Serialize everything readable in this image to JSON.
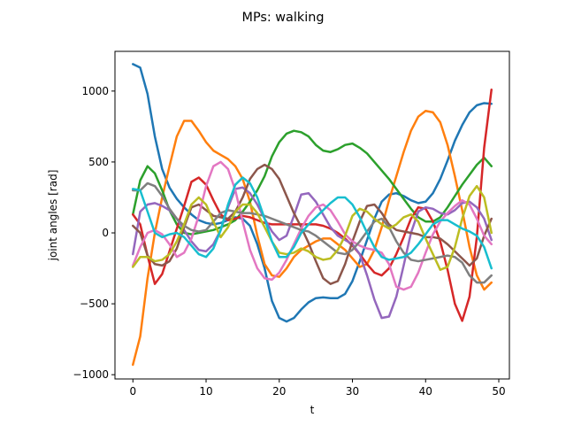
{
  "chart_data": {
    "type": "line",
    "title": "MPs: walking",
    "xlabel": "t",
    "ylabel": "joint angles [rad]",
    "xlim": [
      -2.45,
      51.45
    ],
    "ylim": [
      -1030,
      1280
    ],
    "xticks": [
      0,
      10,
      20,
      30,
      40,
      50
    ],
    "yticks": [
      -1000,
      -500,
      0,
      500,
      1000
    ],
    "grid": false,
    "x": [
      0,
      1,
      2,
      3,
      4,
      5,
      6,
      7,
      8,
      9,
      10,
      11,
      12,
      13,
      14,
      15,
      16,
      17,
      18,
      19,
      20,
      21,
      22,
      23,
      24,
      25,
      26,
      27,
      28,
      29,
      30,
      31,
      32,
      33,
      34,
      35,
      36,
      37,
      38,
      39,
      40,
      41,
      42,
      43,
      44,
      45,
      46,
      47,
      48,
      49
    ],
    "series": [
      {
        "color": "#1f77b4",
        "values": [
          1190,
          1165,
          980,
          680,
          450,
          320,
          240,
          180,
          130,
          90,
          70,
          60,
          70,
          90,
          110,
          100,
          50,
          -80,
          -250,
          -480,
          -600,
          -625,
          -600,
          -540,
          -490,
          -460,
          -455,
          -460,
          -460,
          -430,
          -340,
          -200,
          -50,
          100,
          220,
          270,
          280,
          260,
          230,
          210,
          220,
          280,
          380,
          510,
          650,
          760,
          850,
          900,
          915,
          910
        ]
      },
      {
        "color": "#ff7f0e",
        "values": [
          -930,
          -730,
          -320,
          0,
          250,
          470,
          680,
          790,
          790,
          720,
          640,
          580,
          550,
          520,
          470,
          380,
          220,
          -20,
          -220,
          -300,
          -310,
          -250,
          -170,
          -120,
          -90,
          -60,
          -40,
          -40,
          -80,
          -120,
          -180,
          -240,
          -220,
          -120,
          40,
          230,
          400,
          570,
          720,
          820,
          860,
          850,
          780,
          620,
          400,
          160,
          -100,
          -300,
          -400,
          -350
        ]
      },
      {
        "color": "#2ca02c",
        "values": [
          130,
          370,
          470,
          420,
          300,
          160,
          60,
          0,
          -10,
          0,
          10,
          20,
          40,
          60,
          90,
          150,
          220,
          300,
          400,
          540,
          640,
          700,
          720,
          710,
          680,
          620,
          580,
          570,
          590,
          620,
          630,
          600,
          560,
          500,
          440,
          380,
          310,
          240,
          170,
          110,
          80,
          80,
          110,
          180,
          260,
          340,
          410,
          480,
          530,
          470
        ]
      },
      {
        "color": "#d62728",
        "values": [
          130,
          60,
          -160,
          -360,
          -290,
          -130,
          30,
          190,
          360,
          390,
          340,
          230,
          130,
          90,
          100,
          120,
          110,
          90,
          70,
          60,
          60,
          60,
          60,
          60,
          60,
          60,
          50,
          30,
          0,
          -40,
          -90,
          -150,
          -220,
          -280,
          -300,
          -250,
          -150,
          -30,
          100,
          180,
          170,
          80,
          -60,
          -260,
          -500,
          -620,
          -450,
          -30,
          600,
          1010
        ]
      },
      {
        "color": "#9467bd",
        "values": [
          -150,
          150,
          200,
          210,
          190,
          160,
          100,
          20,
          -60,
          -120,
          -130,
          -80,
          20,
          180,
          310,
          320,
          280,
          200,
          100,
          10,
          -50,
          -20,
          120,
          270,
          280,
          220,
          130,
          40,
          -20,
          -50,
          -80,
          -150,
          -300,
          -470,
          -600,
          -590,
          -450,
          -230,
          0,
          150,
          180,
          170,
          140,
          130,
          160,
          210,
          220,
          180,
          100,
          -50
        ]
      },
      {
        "color": "#8c564b",
        "values": [
          50,
          0,
          -160,
          -220,
          -230,
          -200,
          -110,
          40,
          180,
          200,
          160,
          120,
          110,
          100,
          150,
          250,
          380,
          450,
          480,
          450,
          380,
          260,
          140,
          40,
          -70,
          -200,
          -320,
          -360,
          -340,
          -220,
          -60,
          80,
          190,
          200,
          140,
          60,
          20,
          10,
          0,
          -10,
          -30,
          -30,
          -40,
          -80,
          -130,
          -180,
          -230,
          -180,
          -20,
          100
        ]
      },
      {
        "color": "#e377c2",
        "values": [
          -230,
          -100,
          0,
          20,
          -10,
          -80,
          -170,
          -140,
          -40,
          120,
          330,
          470,
          500,
          450,
          300,
          80,
          -120,
          -250,
          -320,
          -330,
          -280,
          -190,
          -80,
          30,
          120,
          180,
          200,
          160,
          80,
          -10,
          -60,
          -90,
          -110,
          -120,
          -140,
          -220,
          -380,
          -400,
          -380,
          -280,
          -140,
          -10,
          80,
          140,
          190,
          230,
          200,
          100,
          -20,
          -80
        ]
      },
      {
        "color": "#7f7f7f",
        "values": [
          300,
          300,
          350,
          330,
          260,
          170,
          100,
          50,
          20,
          10,
          20,
          80,
          140,
          160,
          150,
          140,
          140,
          130,
          120,
          100,
          80,
          60,
          40,
          20,
          10,
          -20,
          -60,
          -100,
          -140,
          -150,
          -120,
          -60,
          10,
          80,
          100,
          40,
          -60,
          -140,
          -190,
          -200,
          -190,
          -180,
          -170,
          -160,
          -170,
          -210,
          -300,
          -350,
          -350,
          -300
        ]
      },
      {
        "color": "#bcbd22",
        "values": [
          -240,
          -170,
          -170,
          -200,
          -190,
          -150,
          -60,
          60,
          200,
          250,
          200,
          80,
          -30,
          40,
          150,
          200,
          200,
          140,
          40,
          -60,
          -140,
          -150,
          -140,
          -110,
          -130,
          -170,
          -190,
          -180,
          -120,
          -20,
          120,
          170,
          150,
          100,
          60,
          30,
          60,
          110,
          130,
          80,
          -40,
          -150,
          -260,
          -240,
          -100,
          100,
          260,
          330,
          250,
          0
        ]
      },
      {
        "color": "#17becf",
        "values": [
          310,
          300,
          150,
          0,
          -30,
          -10,
          0,
          -30,
          -90,
          -150,
          -170,
          -110,
          20,
          200,
          340,
          390,
          350,
          250,
          100,
          -60,
          -170,
          -170,
          -100,
          0,
          60,
          110,
          160,
          210,
          250,
          250,
          200,
          110,
          0,
          -100,
          -170,
          -190,
          -180,
          -170,
          -140,
          -80,
          -10,
          60,
          90,
          90,
          60,
          30,
          10,
          -20,
          -100,
          -250
        ]
      }
    ]
  }
}
